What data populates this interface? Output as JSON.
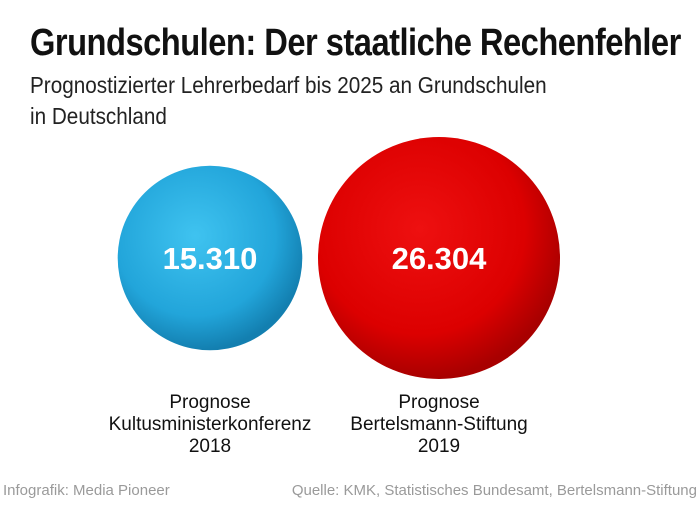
{
  "header": {
    "title": "Grundschulen: Der staatliche Rechenfehler",
    "subtitle_line1": "Prognostizierter Lehrerbedarf bis 2025 an Grundschulen",
    "subtitle_line2": "in Deutschland"
  },
  "chart_data": {
    "type": "bubble",
    "title": "Grundschulen: Der staatliche Rechenfehler",
    "subtitle": "Prognostizierter Lehrerbedarf bis 2025 an Grundschulen in Deutschland",
    "series": [
      {
        "name": "Prognose Kultusministerkonferenz 2018",
        "value": 15310,
        "value_label": "15.310",
        "label_lines": [
          "Prognose",
          "Kultusministerkonferenz",
          "2018"
        ],
        "color": "#2aa9dd"
      },
      {
        "name": "Prognose Bertelsmann-Stiftung 2019",
        "value": 26304,
        "value_label": "26.304",
        "label_lines": [
          "Prognose",
          "Bertelsmann-Stiftung",
          "2019"
        ],
        "color": "#e00000"
      }
    ]
  },
  "footer": {
    "credit": "Infografik: Media Pioneer",
    "source": "Quelle: KMK, Statistisches Bundesamt, Bertelsmann-Stiftung"
  }
}
